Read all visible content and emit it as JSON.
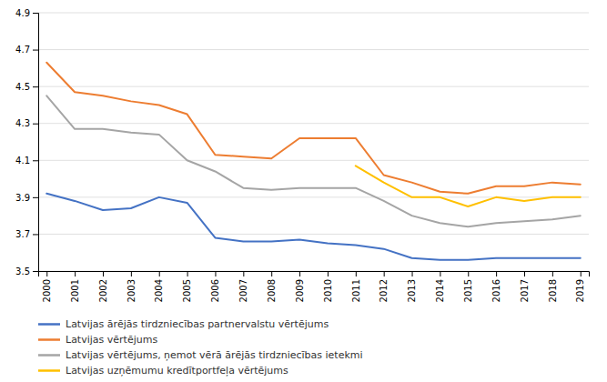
{
  "chart_data": {
    "type": "line",
    "x": [
      2000,
      2001,
      2002,
      2003,
      2004,
      2005,
      2006,
      2007,
      2008,
      2009,
      2010,
      2011,
      2012,
      2013,
      2014,
      2015,
      2016,
      2017,
      2018,
      2019
    ],
    "series": [
      {
        "name": "Latvijas ārējās tirdzniecības partnervalstu vērtējums",
        "color": "#4472C4",
        "values": [
          3.92,
          3.88,
          3.83,
          3.84,
          3.9,
          3.87,
          3.68,
          3.66,
          3.66,
          3.67,
          3.65,
          3.64,
          3.62,
          3.57,
          3.56,
          3.56,
          3.57,
          3.57,
          3.57,
          3.57
        ]
      },
      {
        "name": "Latvijas vērtējums",
        "color": "#ED7D31",
        "values": [
          4.63,
          4.47,
          4.45,
          4.42,
          4.4,
          4.35,
          4.13,
          4.12,
          4.11,
          4.22,
          4.22,
          4.22,
          4.02,
          3.98,
          3.93,
          3.92,
          3.96,
          3.96,
          3.98,
          3.97
        ]
      },
      {
        "name": "Latvijas vērtējums, ņemot vērā ārējās tirdzniecības ietekmi",
        "color": "#A5A5A5",
        "values": [
          4.45,
          4.27,
          4.27,
          4.25,
          4.24,
          4.1,
          4.04,
          3.95,
          3.94,
          3.95,
          3.95,
          3.95,
          3.88,
          3.8,
          3.76,
          3.74,
          3.76,
          3.77,
          3.78,
          3.8
        ]
      },
      {
        "name": "Latvijas uzņēmumu kredītportfeļa vērtējums",
        "color": "#FFC000",
        "values": [
          null,
          null,
          null,
          null,
          null,
          null,
          null,
          null,
          null,
          null,
          null,
          4.07,
          3.98,
          3.9,
          3.9,
          3.85,
          3.9,
          3.88,
          3.9,
          3.9
        ]
      }
    ],
    "xlim": [
      1999.7,
      2019.3
    ],
    "xticks": [
      2000,
      2001,
      2002,
      2003,
      2004,
      2005,
      2006,
      2007,
      2008,
      2009,
      2010,
      2011,
      2012,
      2013,
      2014,
      2015,
      2016,
      2017,
      2018,
      2019
    ],
    "ylim": [
      3.5,
      4.9
    ],
    "yticks": [
      3.5,
      3.7,
      3.9,
      4.1,
      4.3,
      4.5,
      4.7,
      4.9
    ],
    "grid": true,
    "legend": "bottom"
  }
}
